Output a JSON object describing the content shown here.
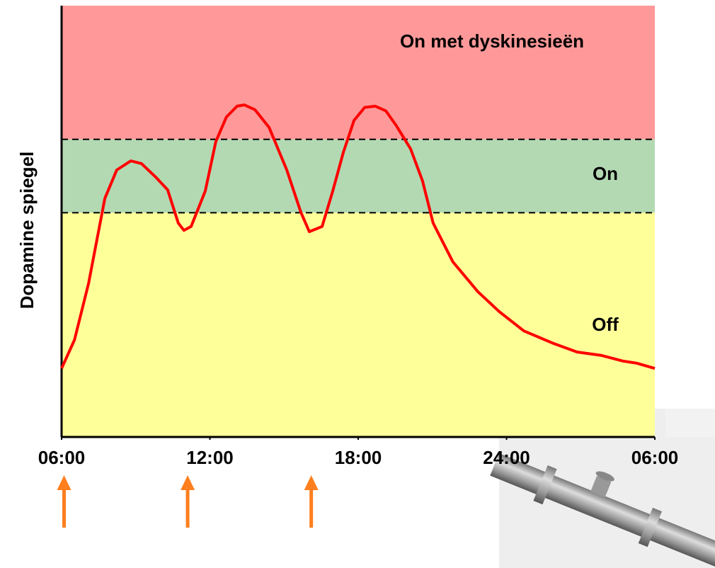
{
  "chart_data": {
    "type": "line",
    "y_axis_label": "Dopamine spiegel",
    "xlim": [
      6,
      30
    ],
    "xticks": [
      {
        "value": 6,
        "label": "06:00"
      },
      {
        "value": 12,
        "label": "12:00"
      },
      {
        "value": 18,
        "label": "18:00"
      },
      {
        "value": 24,
        "label": "24:00"
      },
      {
        "value": 30,
        "label": "06:00"
      }
    ],
    "ylim": [
      0,
      100
    ],
    "bands": [
      {
        "name": "Off",
        "from": 0,
        "to": 52,
        "color": "#ffff99"
      },
      {
        "name": "On",
        "from": 52,
        "to": 69,
        "color": "#b3d9b3"
      },
      {
        "name": "On met dyskinesieën",
        "from": 69,
        "to": 100,
        "color": "#ff9999"
      }
    ],
    "series": [
      {
        "color": "#ff0000",
        "x": [
          6.0,
          6.52,
          7.09,
          7.75,
          8.23,
          8.8,
          9.23,
          9.8,
          10.29,
          10.72,
          10.95,
          11.24,
          11.81,
          12.24,
          12.67,
          13.1,
          13.39,
          13.82,
          14.39,
          15.11,
          15.68,
          16.02,
          16.54,
          16.97,
          17.4,
          17.83,
          18.26,
          18.69,
          19.12,
          19.55,
          20.12,
          20.6,
          21.03,
          21.83,
          22.84,
          23.7,
          24.7,
          25.85,
          26.85,
          27.85,
          28.71,
          29.28,
          30.0
        ],
        "values": [
          15.9,
          22.5,
          35.6,
          55.3,
          61.9,
          64.0,
          63.4,
          60.3,
          57.3,
          49.6,
          47.9,
          48.8,
          57.0,
          68.5,
          74.2,
          76.7,
          77.0,
          75.9,
          71.8,
          61.9,
          52.1,
          47.6,
          48.8,
          57.0,
          66.0,
          73.4,
          76.4,
          76.7,
          75.6,
          72.1,
          66.8,
          59.4,
          49.6,
          40.6,
          33.7,
          29.1,
          24.6,
          21.8,
          19.7,
          18.9,
          17.6,
          17.1,
          15.9
        ]
      }
    ],
    "doses": {
      "color": "#ff7f1e",
      "x": [
        6.1,
        11.1,
        16.1
      ]
    }
  }
}
